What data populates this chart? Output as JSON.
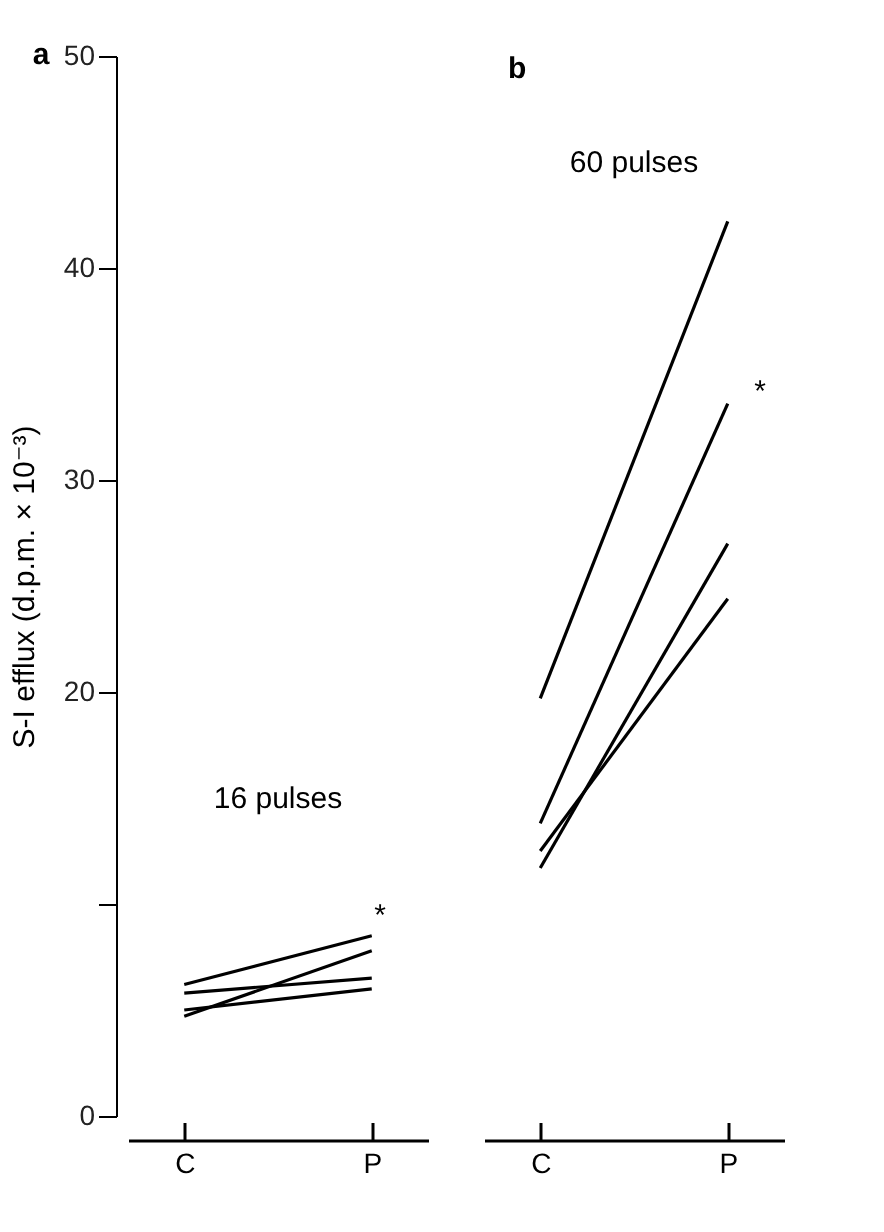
{
  "chart_data": [
    {
      "type": "line",
      "title": "a",
      "ylabel": "S-I efflux (d.p.m. × 10⁻³)",
      "categories": [
        "C",
        "P"
      ],
      "ylim": [
        0,
        50
      ],
      "yticks": [
        0,
        {
          "value": 10,
          "label": null
        },
        20,
        30,
        40,
        50
      ],
      "series": [
        {
          "color": "#000000",
          "values": [
            6.2,
            8.5
          ]
        },
        {
          "color": "#000000",
          "values": [
            4.7,
            7.8
          ]
        },
        {
          "color": "#000000",
          "values": [
            5.8,
            6.5
          ]
        },
        {
          "color": "#000000",
          "values": [
            5.0,
            6.0
          ]
        }
      ],
      "annotations": [
        "16 pulses",
        "*"
      ],
      "grid": false,
      "legend": false,
      "marker": "none",
      "line_style": "solid"
    },
    {
      "type": "line",
      "title": "b",
      "categories": [
        "C",
        "P"
      ],
      "ylim": [
        0,
        50
      ],
      "tick_labels": "x",
      "series": [
        {
          "color": "#000000",
          "values": [
            19.7,
            42.2
          ]
        },
        {
          "color": "#000000",
          "values": [
            13.8,
            33.6
          ]
        },
        {
          "color": "#000000",
          "values": [
            12.5,
            24.4
          ]
        },
        {
          "color": "#000000",
          "values": [
            11.7,
            27.0
          ]
        }
      ],
      "annotations": [
        "60 pulses",
        "*"
      ],
      "grid": false,
      "legend": false,
      "marker": "none",
      "line_style": "solid"
    }
  ]
}
